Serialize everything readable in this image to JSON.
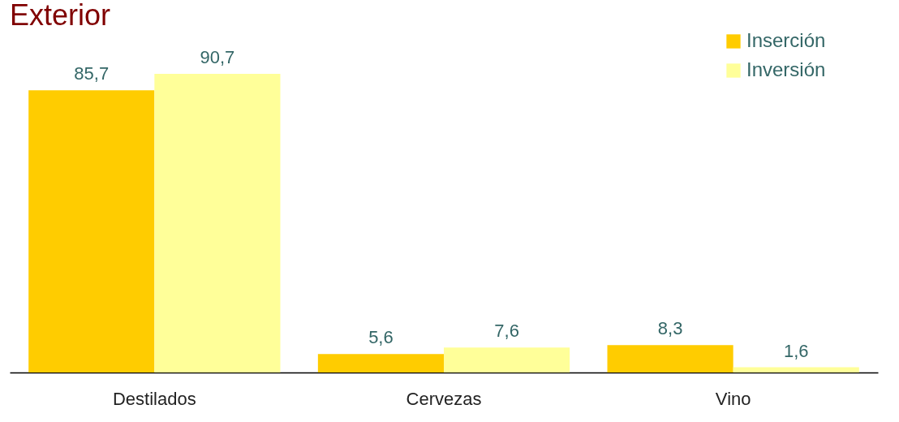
{
  "chart_data": {
    "type": "bar",
    "title": "Exterior",
    "categories": [
      "Destilados",
      "Cervezas",
      "Vino"
    ],
    "series": [
      {
        "name": "Inserción",
        "color": "#ffcc00",
        "values": [
          85.7,
          5.6,
          8.3
        ],
        "value_labels": [
          "85,7",
          "5,6",
          "8,3"
        ]
      },
      {
        "name": "Inversión",
        "color": "#ffff99",
        "values": [
          90.7,
          7.6,
          1.6
        ],
        "value_labels": [
          "90,7",
          "7,6",
          "1,6"
        ]
      }
    ],
    "legend": "top right"
  }
}
